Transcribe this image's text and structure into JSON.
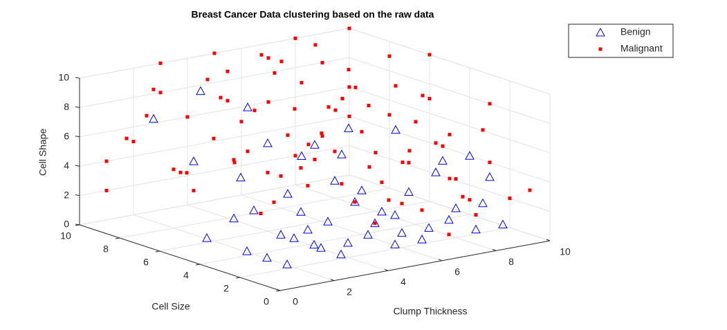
{
  "chart_data": {
    "type": "scatter3d",
    "title": "Breast Cancer Data clustering based on the raw data",
    "x_label": "Clump Thickness",
    "y_label": "Cell Size",
    "z_label": "Cell Shape",
    "xlim": [
      0,
      10
    ],
    "ylim": [
      0,
      10
    ],
    "zlim": [
      0,
      10
    ],
    "xticks": [
      0,
      2,
      4,
      6,
      8,
      10
    ],
    "yticks": [
      0,
      2,
      4,
      6,
      8,
      10
    ],
    "zticks": [
      0,
      2,
      4,
      6,
      8,
      10
    ],
    "grid": true,
    "legend": "northeast",
    "series": [
      {
        "name": "Benign",
        "color": "#0000ff",
        "marker": "triangle",
        "points": [
          [
            5,
            1,
            1
          ],
          [
            3,
            1,
            1
          ],
          [
            6,
            1,
            1
          ],
          [
            4,
            2,
            1
          ],
          [
            2,
            1,
            2
          ],
          [
            1,
            1,
            1
          ],
          [
            4,
            1,
            2
          ],
          [
            5,
            2,
            2
          ],
          [
            3,
            2,
            1
          ],
          [
            1,
            3,
            1
          ],
          [
            2,
            2,
            2
          ],
          [
            6,
            2,
            1
          ],
          [
            7,
            1,
            2
          ],
          [
            8,
            1,
            1
          ],
          [
            5,
            3,
            3
          ],
          [
            4,
            3,
            2
          ],
          [
            3,
            4,
            1
          ],
          [
            6,
            3,
            2
          ],
          [
            2,
            4,
            3
          ],
          [
            1,
            5,
            1
          ],
          [
            7,
            3,
            3
          ],
          [
            8,
            2,
            2
          ],
          [
            9,
            2,
            2
          ],
          [
            5,
            4,
            4
          ],
          [
            4,
            5,
            3
          ],
          [
            3,
            6,
            4
          ],
          [
            6,
            5,
            5
          ],
          [
            2,
            7,
            5
          ],
          [
            5,
            5,
            6
          ],
          [
            3,
            8,
            9
          ],
          [
            4,
            7,
            8
          ],
          [
            8,
            5,
            6
          ],
          [
            7,
            6,
            6
          ],
          [
            9,
            4,
            4
          ],
          [
            10,
            3,
            3
          ],
          [
            6,
            4,
            3
          ],
          [
            2,
            5,
            2
          ],
          [
            4,
            4,
            1
          ],
          [
            1,
            2,
            1
          ],
          [
            5,
            1,
            3
          ],
          [
            7,
            2,
            1
          ],
          [
            3,
            3,
            3
          ],
          [
            4,
            6,
            6
          ],
          [
            2,
            9,
            7
          ],
          [
            6,
            7,
            4
          ],
          [
            8,
            3,
            4
          ],
          [
            10,
            4,
            4
          ],
          [
            9,
            1,
            1
          ]
        ]
      },
      {
        "name": "Malignant",
        "color": "#ff0000",
        "marker": "square",
        "points": [
          [
            5,
            10,
            10
          ],
          [
            8,
            10,
            10
          ],
          [
            10,
            10,
            10
          ],
          [
            7,
            10,
            9
          ],
          [
            6,
            8,
            10
          ],
          [
            3,
            10,
            8
          ],
          [
            4,
            9,
            9
          ],
          [
            9,
            10,
            8
          ],
          [
            10,
            8,
            9
          ],
          [
            10,
            6,
            7
          ],
          [
            8,
            7,
            8
          ],
          [
            7,
            7,
            7
          ],
          [
            6,
            6,
            6
          ],
          [
            5,
            8,
            7
          ],
          [
            4,
            10,
            6
          ],
          [
            2,
            10,
            5
          ],
          [
            1,
            10,
            4
          ],
          [
            1,
            10,
            2
          ],
          [
            3,
            9,
            3
          ],
          [
            2,
            8,
            4
          ],
          [
            6,
            10,
            5
          ],
          [
            8,
            8,
            6
          ],
          [
            10,
            5,
            5
          ],
          [
            10,
            10,
            4
          ],
          [
            9,
            9,
            6
          ],
          [
            7,
            5,
            8
          ],
          [
            8,
            4,
            7
          ],
          [
            10,
            7,
            3
          ],
          [
            10,
            3,
            4
          ],
          [
            10,
            2,
            2
          ],
          [
            9,
            6,
            3
          ],
          [
            8,
            6,
            4
          ],
          [
            6,
            7,
            9
          ],
          [
            5,
            6,
            8
          ],
          [
            4,
            8,
            8
          ],
          [
            3,
            7,
            9
          ],
          [
            2,
            6,
            7
          ],
          [
            5,
            4,
            6
          ],
          [
            7,
            3,
            5
          ],
          [
            6,
            3,
            4
          ],
          [
            5,
            5,
            5
          ],
          [
            4,
            6,
            4
          ],
          [
            3,
            5,
            2
          ],
          [
            2,
            7,
            3
          ],
          [
            8,
            10,
            2
          ],
          [
            10,
            9,
            1
          ],
          [
            9,
            10,
            3
          ],
          [
            7,
            8,
            4
          ],
          [
            5,
            9,
            3
          ],
          [
            4,
            4,
            4
          ],
          [
            6,
            2,
            3
          ],
          [
            8,
            2,
            4
          ],
          [
            10,
            1,
            3
          ],
          [
            10,
            4,
            1
          ],
          [
            9,
            3,
            2
          ],
          [
            7,
            4,
            2
          ],
          [
            5,
            3,
            3
          ],
          [
            3,
            4,
            5
          ],
          [
            2,
            3,
            4
          ],
          [
            1,
            9,
            6
          ],
          [
            1,
            8,
            8
          ],
          [
            2,
            9,
            9
          ],
          [
            3,
            10,
            10
          ],
          [
            4,
            8,
            10
          ],
          [
            6,
            9,
            10
          ],
          [
            7,
            10,
            6
          ],
          [
            8,
            9,
            10
          ],
          [
            10,
            10,
            6
          ],
          [
            10,
            3,
            8
          ],
          [
            9,
            2,
            7
          ],
          [
            8,
            5,
            9
          ],
          [
            7,
            6,
            10
          ],
          [
            6,
            4,
            7
          ],
          [
            5,
            7,
            10
          ],
          [
            4,
            5,
            7
          ],
          [
            3,
            3,
            6
          ],
          [
            10,
            6,
            10
          ],
          [
            10,
            5,
            2
          ],
          [
            8,
            1,
            2
          ],
          [
            6,
            1,
            3
          ],
          [
            5,
            2,
            2
          ],
          [
            7,
            1,
            1
          ],
          [
            9,
            4,
            5
          ],
          [
            10,
            8,
            5
          ],
          [
            8,
            3,
            6
          ],
          [
            9,
            5,
            8
          ],
          [
            4,
            7,
            5
          ],
          [
            2,
            5,
            6
          ],
          [
            1,
            6,
            5
          ],
          [
            6,
            5,
            3
          ]
        ]
      }
    ]
  }
}
